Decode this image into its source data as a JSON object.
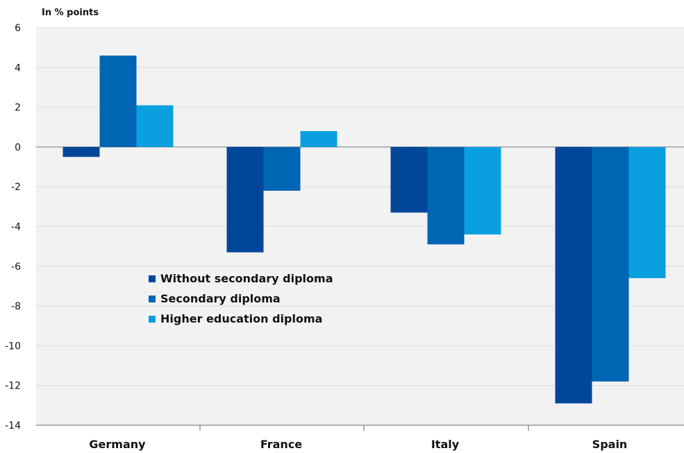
{
  "chart_data": {
    "type": "bar",
    "ylabel": "In % points",
    "categories": [
      "Germany",
      "France",
      "Italy",
      "Spain"
    ],
    "series": [
      {
        "name": "Without secondary diploma",
        "color": "#00479a",
        "values": [
          -0.5,
          -5.3,
          -3.3,
          -12.9
        ]
      },
      {
        "name": "Secondary diploma",
        "color": "#0065b3",
        "values": [
          4.6,
          -2.2,
          -4.9,
          -11.8
        ]
      },
      {
        "name": "Higher education diploma",
        "color": "#0aa0e0",
        "values": [
          2.1,
          0.8,
          -4.4,
          -6.6
        ]
      }
    ],
    "ylim": [
      -14,
      6
    ],
    "yticks": [
      6,
      4,
      2,
      0,
      -2,
      -4,
      -6,
      -8,
      -10,
      -12,
      -14
    ],
    "grid": true,
    "legend_position": "center-left",
    "background": "#f2f2f2"
  }
}
